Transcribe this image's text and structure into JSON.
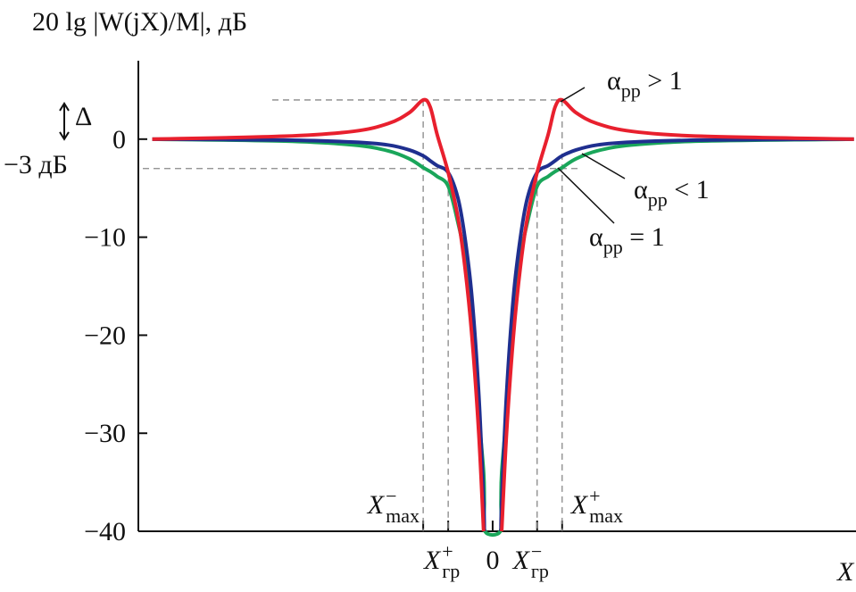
{
  "chart_data": {
    "type": "line",
    "title": "20 lg |W(jX)/M|, дБ",
    "x_label": "X",
    "xlim": [
      -5.1,
      5.23
    ],
    "ylim": [
      -40,
      8
    ],
    "yticks": [
      {
        "value": 0,
        "label": "0"
      },
      {
        "value": -10,
        "label": "−10"
      },
      {
        "value": -20,
        "label": "−20"
      },
      {
        "value": -30,
        "label": "−30"
      },
      {
        "value": -40,
        "label": "−40"
      }
    ],
    "xticks": [
      {
        "value": -1,
        "label": "X",
        "sub": "max",
        "sup": "−"
      },
      {
        "value": -0.64,
        "label": "X",
        "sub": "гр",
        "sup": "+"
      },
      {
        "value": 0,
        "label": "0"
      },
      {
        "value": 0.64,
        "label": "X",
        "sub": "гр",
        "sup": "−"
      },
      {
        "value": 1,
        "label": "X",
        "sub": "max",
        "sup": "+"
      }
    ],
    "reference_lines": [
      {
        "value": 4,
        "label": "Δ"
      },
      {
        "value": -3,
        "label": "−3 дБ"
      }
    ],
    "x": [
      -4.9,
      -3,
      -2,
      -1.5,
      -1.2,
      -1,
      -0.9,
      -0.8,
      -0.64,
      -0.5,
      -0.4,
      -0.3,
      -0.2,
      -0.13,
      -0.12,
      -0.11,
      0.11,
      0.12,
      0.13,
      0.2,
      0.3,
      0.4,
      0.5,
      0.64,
      0.8,
      0.9,
      1,
      1.2,
      1.5,
      2,
      3,
      5.2
    ],
    "series": [
      {
        "name": "α",
        "sub": "рр",
        "rest": " > 1",
        "color": "#e8202e",
        "values": [
          0,
          0.3,
          0.8,
          1.6,
          2.7,
          4,
          3.3,
          0.5,
          -3.4,
          -8,
          -13,
          -20,
          -30,
          -40,
          null,
          null,
          null,
          null,
          -40,
          -30,
          -20,
          -13,
          -8,
          -3.4,
          0.5,
          3.3,
          4,
          2.7,
          1.6,
          0.8,
          0.3,
          0
        ]
      },
      {
        "name": "α",
        "sub": "рр",
        "rest": " < 1",
        "color": "#1f2f8f",
        "values": [
          0,
          -0.1,
          -0.3,
          -0.6,
          -1.1,
          -1.7,
          -2.2,
          -2.7,
          -3.4,
          -6,
          -10,
          -16,
          -26,
          -37,
          -40,
          null,
          null,
          -40,
          -37,
          -26,
          -16,
          -10,
          -6,
          -3.4,
          -2.7,
          -2.2,
          -1.7,
          -1.1,
          -0.6,
          -0.3,
          -0.1,
          0
        ]
      },
      {
        "name": "α",
        "sub": "рр",
        "rest": " = 1",
        "color": "#1aa65a",
        "values": [
          0,
          -0.2,
          -0.6,
          -1.2,
          -2,
          -2.9,
          -3.3,
          -3.8,
          -4.8,
          -8.5,
          -12,
          -18,
          -28,
          -34,
          -37,
          -40,
          -40,
          -37,
          -34,
          -28,
          -18,
          -12,
          -8.5,
          -4.8,
          -3.8,
          -3.3,
          -2.9,
          -2,
          -1.2,
          -0.6,
          -0.2,
          0
        ]
      }
    ]
  }
}
